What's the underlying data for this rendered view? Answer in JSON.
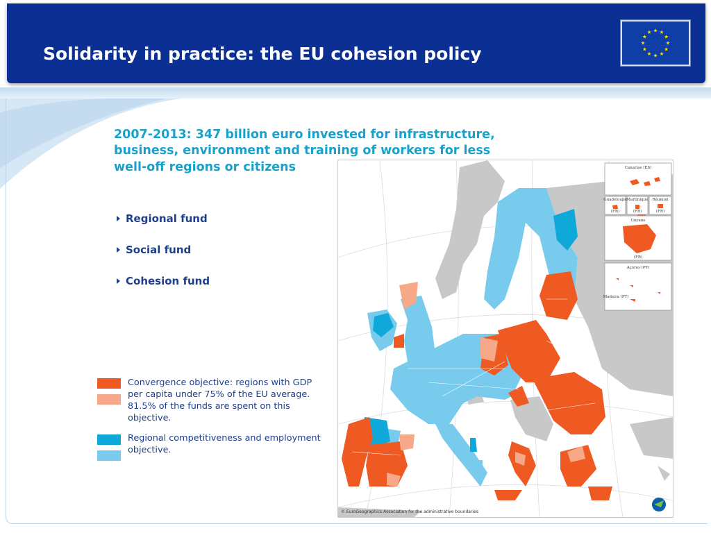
{
  "header": {
    "title": "Solidarity in practice: the EU cohesion policy",
    "flag_icon": "eu-flag-icon"
  },
  "headline": {
    "line1": "2007-2013: 347 billion euro invested for infrastructure,",
    "line2": "business, environment and training of workers for less",
    "line3": "well-off regions or citizens"
  },
  "bullets": [
    {
      "label": "Regional fund"
    },
    {
      "label": "Social fund"
    },
    {
      "label": "Cohesion fund"
    }
  ],
  "legend": [
    {
      "text": "Convergence objective: regions with GDP per capita under 75% of the EU average. 81.5% of the funds are spent on this objective.",
      "colors": [
        "#ef5a23",
        "#f7a888"
      ]
    },
    {
      "text": "Regional competitiveness and employment objective.",
      "colors": [
        "#0ea9d9",
        "#78cbec"
      ]
    }
  ],
  "map": {
    "colors": {
      "convergence": "#ef5a23",
      "phasing_out": "#f7a888",
      "competitiveness": "#78cbec",
      "phasing_in": "#0ea9d9",
      "non_eu": "#c8c8c8",
      "sea": "#ffffff"
    },
    "insets": {
      "canarias": "Canarias (ES)",
      "guadeloupe": "Guadeloupe",
      "martinique": "Martinique",
      "reunion": "Réunion",
      "fr1": "(FR)",
      "fr2": "(FR)",
      "fr3": "(FR)",
      "guyane": "Guyane",
      "guyane_fr": "(FR)",
      "acores": "Açores (PT)",
      "madeira": "Madeira (PT)"
    },
    "credit": "© EuroGeographics Association for the administrative boundaries"
  }
}
